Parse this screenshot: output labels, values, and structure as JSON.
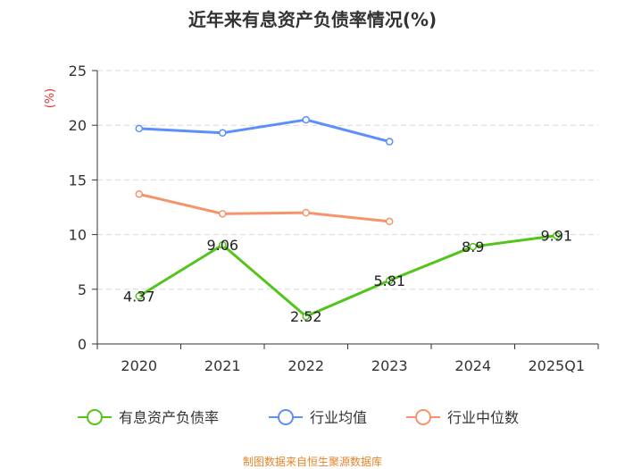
{
  "chart_data": {
    "type": "line",
    "title": "近年来有息资产负债率情况(%)",
    "ylabel": "(%)",
    "ylim": [
      0,
      25
    ],
    "yticks": [
      0,
      5,
      10,
      15,
      20,
      25
    ],
    "categories": [
      "2020",
      "2021",
      "2022",
      "2023",
      "2024",
      "2025Q1"
    ],
    "grid": true,
    "legend_position": "bottom",
    "series": [
      {
        "name": "有息资产负债率",
        "color": "#52c41a",
        "values": [
          4.37,
          9.06,
          2.52,
          5.81,
          8.9,
          9.91
        ],
        "labels": [
          "4.37",
          "9.06",
          "2.52",
          "5.81",
          "8.9",
          "9.91"
        ]
      },
      {
        "name": "行业均值",
        "color": "#5b8ff9",
        "values": [
          19.7,
          19.3,
          20.5,
          18.5,
          null,
          null
        ]
      },
      {
        "name": "行业中位数",
        "color": "#f6936b",
        "values": [
          13.7,
          11.9,
          12.0,
          11.2,
          null,
          null
        ]
      }
    ]
  },
  "footer": "制图数据来自恒生聚源数据库",
  "colors": {
    "axis": "#333333",
    "grid": "#d9d9d9",
    "ylabel": "#e03030",
    "footer": "#e8842c"
  }
}
